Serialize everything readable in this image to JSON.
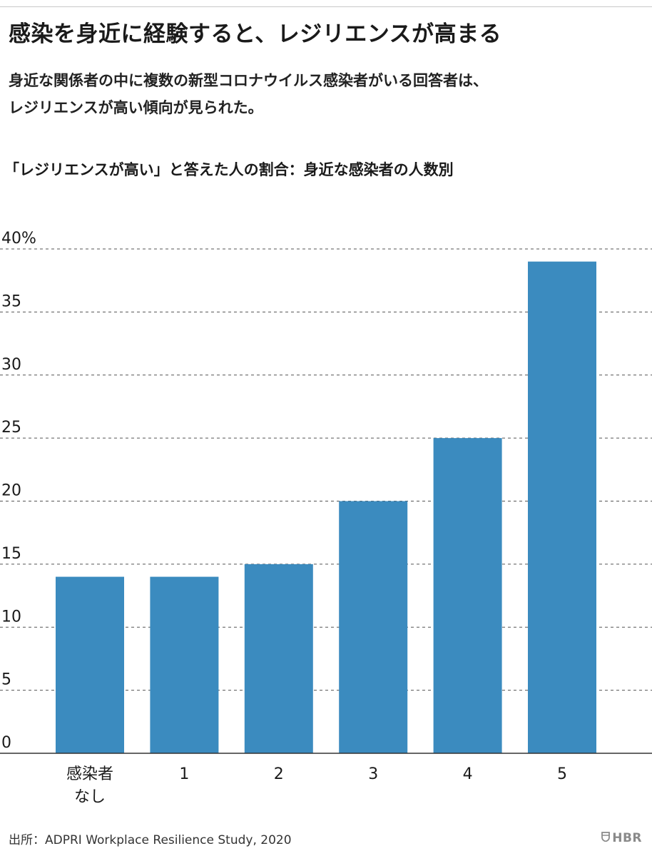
{
  "header": {
    "title": "感染を身近に経験すると、レジリエンスが高まる",
    "subtitle_lines": [
      "身近な関係者の中に複数の新型コロナウイルス感染者がいる回答者は、",
      "レジリエンスが高い傾向が見られた。"
    ]
  },
  "chart_data": {
    "type": "bar",
    "title": "「レジリエンスが高い」と答えた人の割合：身近な感染者の人数別",
    "categories": [
      [
        "感染者",
        "なし"
      ],
      [
        "1"
      ],
      [
        "2"
      ],
      [
        "3"
      ],
      [
        "4"
      ],
      [
        "5"
      ]
    ],
    "values": [
      14,
      14,
      15,
      20,
      25,
      39
    ],
    "ylim": [
      0,
      40
    ],
    "yticks": [
      0,
      5,
      10,
      15,
      20,
      25,
      30,
      35,
      40
    ],
    "ytick_labels": [
      "0",
      "5",
      "10",
      "15",
      "20",
      "25",
      "30",
      "35",
      "40%"
    ],
    "xlabel": "",
    "ylabel": "",
    "grid": true,
    "bar_color": "#3b8bbf",
    "grid_color": "#555555"
  },
  "footer": {
    "source": "出所：ADPRI Workplace Resilience Study, 2020",
    "logo_text": "HBR",
    "logo_icon": "shield-icon"
  }
}
